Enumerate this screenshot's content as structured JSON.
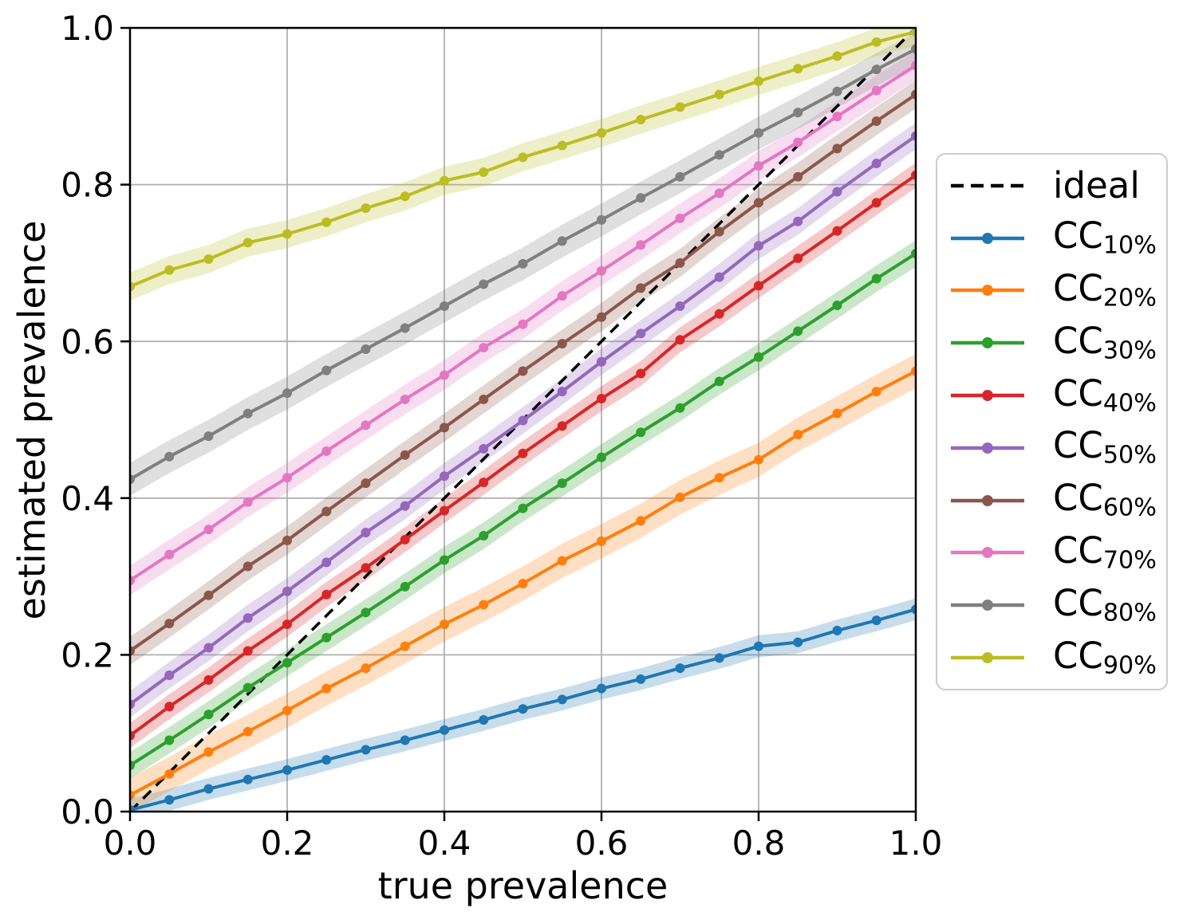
{
  "chart_data": {
    "type": "line",
    "title": "",
    "xlabel": "true prevalence",
    "ylabel": "estimated prevalence",
    "xlim": [
      0.0,
      1.0
    ],
    "ylim": [
      0.0,
      1.0
    ],
    "grid": true,
    "grid_color": "#b0b0b0",
    "background_color": "#ffffff",
    "legend_position": "outside-right",
    "xticks": [
      0.0,
      0.2,
      0.4,
      0.6,
      0.8,
      1.0
    ],
    "yticks": [
      0.0,
      0.2,
      0.4,
      0.6,
      0.8,
      1.0
    ],
    "xtick_labels": [
      "0.0",
      "0.2",
      "0.4",
      "0.6",
      "0.8",
      "1.0"
    ],
    "ytick_labels": [
      "0.0",
      "0.2",
      "0.4",
      "0.6",
      "0.8",
      "1.0"
    ],
    "x": [
      0.0,
      0.05,
      0.1,
      0.15,
      0.2,
      0.25,
      0.3,
      0.35,
      0.4,
      0.45,
      0.5,
      0.55,
      0.6,
      0.65,
      0.7,
      0.75,
      0.8,
      0.85,
      0.9,
      0.95,
      1.0
    ],
    "ideal_line": {
      "label": "ideal",
      "color": "#000000",
      "style": "dashed",
      "points": [
        [
          0.0,
          0.0
        ],
        [
          1.0,
          1.0
        ]
      ]
    },
    "series": [
      {
        "label": "CC",
        "subscript": "10%",
        "color": "#1f77b4",
        "band_halfwidth": 0.014,
        "values": [
          0.002,
          0.015,
          0.029,
          0.041,
          0.053,
          0.066,
          0.079,
          0.091,
          0.104,
          0.117,
          0.131,
          0.143,
          0.157,
          0.169,
          0.183,
          0.196,
          0.211,
          0.216,
          0.231,
          0.244,
          0.258
        ]
      },
      {
        "label": "CC",
        "subscript": "20%",
        "color": "#ff7f0e",
        "band_halfwidth": 0.022,
        "values": [
          0.021,
          0.048,
          0.076,
          0.102,
          0.129,
          0.157,
          0.183,
          0.211,
          0.239,
          0.264,
          0.291,
          0.32,
          0.345,
          0.371,
          0.401,
          0.426,
          0.449,
          0.481,
          0.508,
          0.536,
          0.562
        ]
      },
      {
        "label": "CC",
        "subscript": "30%",
        "color": "#2ca02c",
        "band_halfwidth": 0.017,
        "values": [
          0.059,
          0.091,
          0.124,
          0.158,
          0.19,
          0.222,
          0.254,
          0.287,
          0.321,
          0.352,
          0.387,
          0.419,
          0.452,
          0.484,
          0.515,
          0.549,
          0.58,
          0.613,
          0.646,
          0.68,
          0.712
        ]
      },
      {
        "label": "CC",
        "subscript": "40%",
        "color": "#d62728",
        "band_halfwidth": 0.016,
        "values": [
          0.097,
          0.134,
          0.168,
          0.205,
          0.239,
          0.277,
          0.311,
          0.347,
          0.384,
          0.42,
          0.457,
          0.492,
          0.527,
          0.559,
          0.602,
          0.635,
          0.671,
          0.706,
          0.741,
          0.777,
          0.812
        ]
      },
      {
        "label": "CC",
        "subscript": "50%",
        "color": "#9467bd",
        "band_halfwidth": 0.017,
        "values": [
          0.137,
          0.174,
          0.209,
          0.247,
          0.281,
          0.318,
          0.356,
          0.39,
          0.428,
          0.463,
          0.499,
          0.536,
          0.574,
          0.61,
          0.645,
          0.682,
          0.722,
          0.753,
          0.791,
          0.827,
          0.862
        ]
      },
      {
        "label": "CC",
        "subscript": "60%",
        "color": "#8c564b",
        "band_halfwidth": 0.018,
        "values": [
          0.205,
          0.24,
          0.276,
          0.313,
          0.346,
          0.383,
          0.419,
          0.455,
          0.49,
          0.526,
          0.562,
          0.597,
          0.631,
          0.668,
          0.7,
          0.74,
          0.777,
          0.81,
          0.846,
          0.881,
          0.915
        ]
      },
      {
        "label": "CC",
        "subscript": "70%",
        "color": "#e377c2",
        "band_halfwidth": 0.019,
        "values": [
          0.295,
          0.328,
          0.36,
          0.395,
          0.426,
          0.46,
          0.493,
          0.526,
          0.557,
          0.592,
          0.622,
          0.658,
          0.69,
          0.723,
          0.757,
          0.789,
          0.824,
          0.854,
          0.887,
          0.92,
          0.952
        ]
      },
      {
        "label": "CC",
        "subscript": "80%",
        "color": "#7f7f7f",
        "band_halfwidth": 0.021,
        "values": [
          0.424,
          0.453,
          0.479,
          0.508,
          0.534,
          0.563,
          0.59,
          0.617,
          0.645,
          0.673,
          0.699,
          0.728,
          0.755,
          0.783,
          0.81,
          0.838,
          0.866,
          0.892,
          0.919,
          0.947,
          0.973
        ]
      },
      {
        "label": "CC",
        "subscript": "90%",
        "color": "#bcbd22",
        "band_halfwidth": 0.018,
        "values": [
          0.67,
          0.691,
          0.705,
          0.726,
          0.737,
          0.752,
          0.77,
          0.785,
          0.805,
          0.816,
          0.835,
          0.85,
          0.866,
          0.883,
          0.899,
          0.915,
          0.932,
          0.948,
          0.964,
          0.982,
          0.995
        ]
      }
    ]
  }
}
